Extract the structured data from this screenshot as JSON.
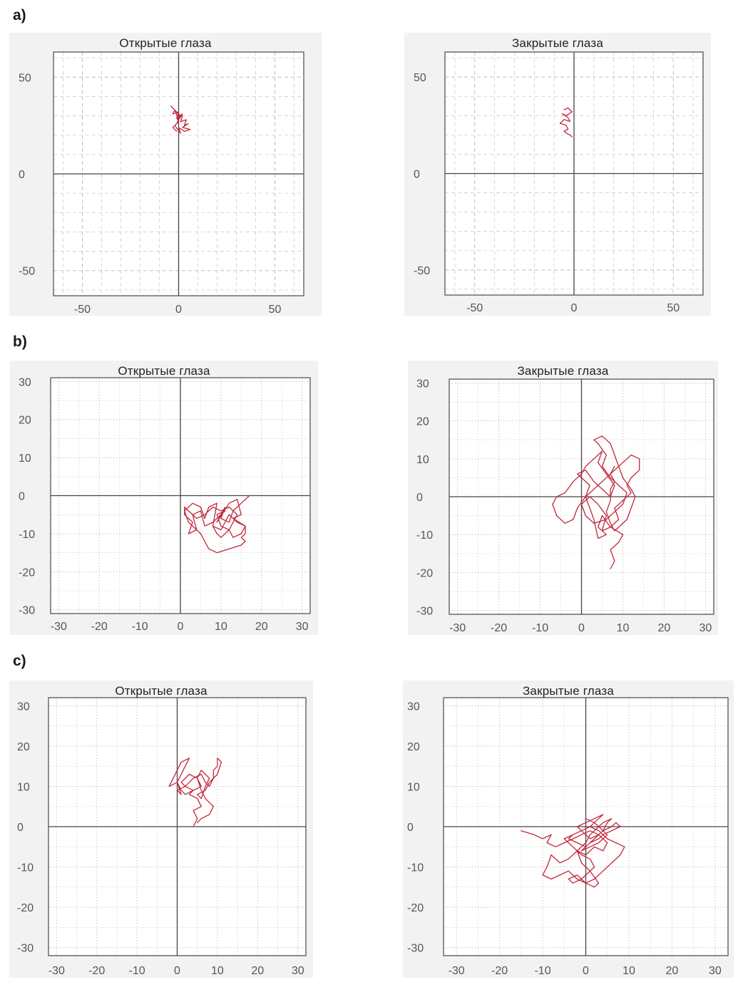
{
  "row_labels": [
    "a)",
    "b)",
    "c)"
  ],
  "chart_data": [
    {
      "type": "line",
      "title": "Открытые глаза",
      "xlim": [
        -65,
        65
      ],
      "ylim": [
        -63,
        63
      ],
      "xticks": [
        -50,
        0,
        50
      ],
      "yticks": [
        -50,
        0,
        50
      ],
      "grid": true,
      "grid_style": "dashed",
      "series": [
        {
          "color": "#c0283c",
          "x": [
            -4,
            -2,
            -3,
            0,
            -1,
            2,
            1,
            4,
            3,
            5,
            2,
            6,
            3,
            0,
            1,
            -2,
            0,
            -1,
            2,
            0,
            -2,
            1,
            -1,
            -3,
            -1
          ],
          "y": [
            35,
            33,
            31,
            32,
            29,
            30,
            27,
            28,
            25,
            26,
            24,
            23,
            22,
            24,
            21,
            25,
            27,
            29,
            31,
            28,
            33,
            30,
            26,
            24,
            22
          ]
        }
      ]
    },
    {
      "type": "line",
      "title": "Закрытые глаза",
      "xlim": [
        -65,
        65
      ],
      "ylim": [
        -63,
        63
      ],
      "xticks": [
        -50,
        0,
        50
      ],
      "yticks": [
        -50,
        0,
        50
      ],
      "grid": true,
      "grid_style": "dashed",
      "series": [
        {
          "color": "#c0283c",
          "x": [
            -5,
            -3,
            -1,
            -4,
            -6,
            -3,
            -2,
            -5,
            -7,
            -4,
            -3,
            -5,
            -4,
            -2,
            -1
          ],
          "y": [
            33,
            34,
            32,
            30,
            31,
            29,
            27,
            28,
            26,
            25,
            23,
            22,
            21,
            20,
            19
          ]
        }
      ]
    },
    {
      "type": "line",
      "title": "Открытые глаза",
      "xlim": [
        -32,
        32
      ],
      "ylim": [
        -31,
        31
      ],
      "xticks": [
        -30,
        -20,
        -10,
        0,
        10,
        20,
        30
      ],
      "yticks": [
        -30,
        -20,
        -10,
        0,
        10,
        20,
        30
      ],
      "grid": true,
      "grid_style": "dotted",
      "series": [
        {
          "color": "#c0283c",
          "x": [
            17,
            15,
            13,
            12,
            10,
            11,
            9,
            12,
            14,
            15,
            13,
            16,
            15,
            13,
            12,
            10,
            9,
            11,
            8,
            6,
            5,
            3,
            4,
            2,
            1,
            3,
            5,
            6,
            7,
            9,
            8,
            10,
            12,
            14,
            16,
            16,
            15,
            16,
            15,
            12,
            9,
            7,
            6,
            5,
            4,
            2,
            3,
            1,
            1,
            2,
            4,
            6,
            8,
            10,
            12,
            14,
            13,
            12,
            10,
            9,
            8
          ],
          "y": [
            0,
            -2,
            -4,
            -7,
            -6,
            -3,
            -7,
            -2,
            -1,
            -5,
            -6,
            -8,
            -10,
            -11,
            -9,
            -8,
            -5,
            -4,
            -7,
            -8,
            -4,
            -5,
            -9,
            -7,
            -4,
            -2,
            -3,
            -6,
            -3,
            -2,
            -8,
            -9,
            -5,
            -7,
            -8,
            -10,
            -11,
            -12,
            -13,
            -14,
            -15,
            -14,
            -12,
            -10,
            -9,
            -10,
            -7,
            -5,
            -3,
            -4,
            -6,
            -5,
            -3,
            -4,
            -3,
            -5,
            -7,
            -9,
            -11,
            -10,
            -8
          ]
        }
      ]
    },
    {
      "type": "line",
      "title": "Закрытые глаза",
      "xlim": [
        -32,
        32
      ],
      "ylim": [
        -31,
        31
      ],
      "xticks": [
        -30,
        -20,
        -10,
        0,
        10,
        20,
        30
      ],
      "yticks": [
        -30,
        -20,
        -10,
        0,
        10,
        20,
        30
      ],
      "grid": true,
      "grid_style": "dotted",
      "series": [
        {
          "color": "#c0283c",
          "x": [
            7,
            8,
            7,
            9,
            10,
            7,
            5,
            4,
            6,
            4,
            3,
            2,
            1,
            2,
            0,
            -1,
            1,
            3,
            5,
            7,
            8,
            6,
            4,
            5,
            3,
            1,
            0,
            -2,
            -4,
            -6,
            -7,
            -6,
            -4,
            -2,
            -1,
            1,
            3,
            5,
            7,
            9,
            11,
            12,
            14,
            14,
            12,
            11,
            12,
            10,
            8,
            9,
            7,
            5,
            6,
            4,
            2,
            0,
            1,
            3,
            6,
            8,
            10,
            11,
            9,
            7,
            5,
            6,
            4,
            3,
            5,
            7,
            8,
            9,
            10,
            12,
            13,
            12,
            11,
            9,
            8,
            7,
            6,
            7,
            7,
            8,
            7,
            8
          ],
          "y": [
            -19,
            -17,
            -14,
            -12,
            -10,
            -8,
            -5,
            -8,
            -10,
            -11,
            -6,
            -3,
            0,
            3,
            5,
            6,
            7,
            4,
            2,
            0,
            3,
            6,
            9,
            12,
            10,
            8,
            6,
            4,
            1,
            0,
            -2,
            -5,
            -7,
            -6,
            -3,
            0,
            2,
            4,
            6,
            8,
            10,
            11,
            10,
            7,
            5,
            3,
            1,
            -1,
            -3,
            -6,
            -8,
            -9,
            -5,
            -2,
            0,
            -2,
            -5,
            -7,
            -6,
            -4,
            -2,
            1,
            3,
            5,
            8,
            11,
            14,
            15,
            16,
            14,
            11,
            8,
            5,
            2,
            0,
            -3,
            -6,
            -8,
            -9,
            -7,
            -4,
            -1,
            2,
            4,
            6,
            8
          ]
        }
      ]
    },
    {
      "type": "line",
      "title": "Открытые глаза",
      "xlim": [
        -32,
        32
      ],
      "ylim": [
        -32,
        32
      ],
      "xticks": [
        -30,
        -20,
        -10,
        0,
        10,
        20,
        30
      ],
      "yticks": [
        -30,
        -20,
        -10,
        0,
        10,
        20,
        30
      ],
      "grid": true,
      "grid_style": "dotted",
      "series": [
        {
          "color": "#c0283c",
          "x": [
            4,
            5,
            4,
            6,
            5,
            3,
            4,
            2,
            1,
            3,
            5,
            6,
            4,
            2,
            1,
            0,
            1,
            2,
            3,
            1,
            0,
            -1,
            -2,
            0,
            1,
            0,
            2,
            4,
            6,
            7,
            8,
            9,
            9,
            10,
            10,
            11,
            10,
            8,
            7,
            5,
            6,
            7,
            8,
            6,
            5,
            6,
            7,
            8,
            9,
            8,
            6,
            5
          ],
          "y": [
            0,
            2,
            4,
            5,
            7,
            8,
            9,
            10,
            11,
            13,
            12,
            10,
            9,
            8,
            9,
            11,
            13,
            15,
            17,
            16,
            14,
            12,
            10,
            11,
            8,
            9,
            10,
            12,
            13,
            11,
            10,
            12,
            14,
            15,
            17,
            16,
            13,
            11,
            9,
            8,
            7,
            10,
            12,
            14,
            12,
            9,
            7,
            6,
            5,
            3,
            2,
            1
          ]
        }
      ]
    },
    {
      "type": "line",
      "title": "Закрытые глаза",
      "xlim": [
        -33,
        33
      ],
      "ylim": [
        -32,
        32
      ],
      "xticks": [
        -30,
        -20,
        -10,
        0,
        10,
        20,
        30
      ],
      "yticks": [
        -30,
        -20,
        -10,
        0,
        10,
        20,
        30
      ],
      "grid": true,
      "grid_style": "dotted",
      "series": [
        {
          "color": "#c0283c",
          "x": [
            -15,
            -12,
            -10,
            -8,
            -9,
            -7,
            -5,
            -3,
            -1,
            1,
            3,
            5,
            4,
            2,
            0,
            -2,
            -4,
            -6,
            -8,
            -9,
            -10,
            -8,
            -6,
            -4,
            -2,
            0,
            2,
            4,
            6,
            8,
            9,
            7,
            5,
            3,
            1,
            -1,
            -3,
            -5,
            -3,
            -1,
            1,
            2,
            0,
            -1,
            -3,
            -4,
            -2,
            0,
            2,
            3,
            1,
            -1,
            -2,
            0,
            1,
            2,
            3,
            4,
            6,
            5,
            4,
            3,
            1,
            0,
            -1,
            -2,
            0,
            2,
            4,
            3,
            2,
            1,
            -1,
            -3,
            -4,
            -2,
            0,
            1,
            2,
            4,
            6,
            7,
            8,
            6,
            4,
            3,
            1,
            0,
            -1,
            1,
            3,
            4,
            5,
            4,
            2,
            0
          ],
          "y": [
            -1,
            -2,
            -3,
            -2,
            -4,
            -5,
            -4,
            -3,
            -2,
            -1,
            -2,
            -4,
            -6,
            -5,
            -7,
            -6,
            -8,
            -9,
            -7,
            -10,
            -12,
            -13,
            -12,
            -11,
            -13,
            -14,
            -13,
            -11,
            -9,
            -7,
            -5,
            -4,
            -3,
            -1,
            0,
            -1,
            -2,
            -3,
            -5,
            -7,
            -8,
            -10,
            -12,
            -13,
            -14,
            -13,
            -12,
            -14,
            -15,
            -14,
            -11,
            -9,
            -6,
            -4,
            -2,
            -1,
            0,
            1,
            2,
            1,
            -1,
            -2,
            -3,
            -2,
            -1,
            0,
            1,
            2,
            3,
            2,
            1,
            0,
            -1,
            -2,
            -3,
            -4,
            -5,
            -4,
            -3,
            -1,
            0,
            1,
            0,
            -1,
            -2,
            -3,
            -4,
            -5,
            -6,
            -5,
            -4,
            -3,
            -2,
            -1,
            1,
            2
          ]
        }
      ]
    }
  ]
}
